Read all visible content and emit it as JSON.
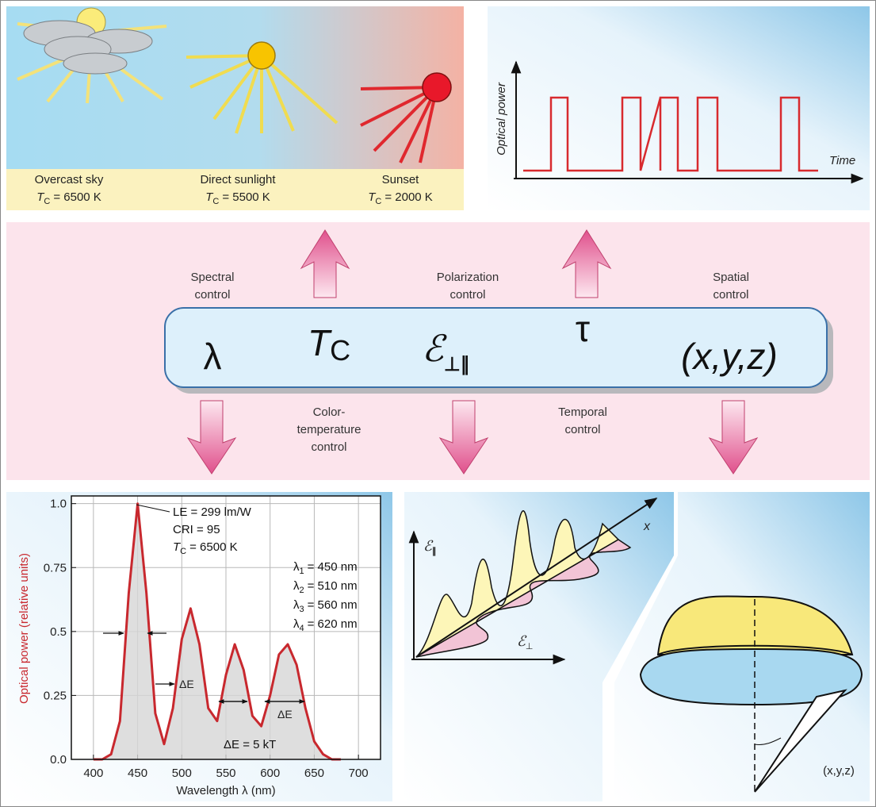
{
  "sky_panel": {
    "sources": [
      {
        "name": "Overcast sky",
        "symbol": "T",
        "subscript": "C",
        "value": "= 6500 K"
      },
      {
        "name": "Direct sunlight",
        "symbol": "T",
        "subscript": "C",
        "value": "= 5500 K"
      },
      {
        "name": "Sunset",
        "symbol": "T",
        "subscript": "C",
        "value": "= 2000 K"
      }
    ]
  },
  "pulse_panel": {
    "y_label": "Optical power",
    "x_label": "Time"
  },
  "controls": {
    "spectral": [
      "Spectral",
      "control"
    ],
    "polarization": [
      "Polarization",
      "control"
    ],
    "spatial": [
      "Spatial",
      "control"
    ],
    "color_temperature": [
      "Color-",
      "temperature",
      "control"
    ],
    "temporal": [
      "Temporal",
      "control"
    ]
  },
  "parameters": {
    "lambda": "λ",
    "tc_symbol": "T",
    "tc_subscript": "C",
    "field": "ℰ",
    "field_subscript": "⊥∥",
    "tau": "τ",
    "position": "(x,y,z)"
  },
  "spectrum": {
    "type": "line",
    "color": "#c8282e",
    "x": [
      400,
      410,
      420,
      430,
      440,
      450,
      460,
      470,
      480,
      490,
      500,
      510,
      520,
      530,
      540,
      550,
      560,
      570,
      580,
      590,
      600,
      610,
      620,
      630,
      640,
      650,
      660,
      670,
      680
    ],
    "values": [
      0,
      0,
      0.02,
      0.15,
      0.65,
      1.0,
      0.65,
      0.18,
      0.06,
      0.2,
      0.47,
      0.59,
      0.45,
      0.2,
      0.15,
      0.33,
      0.45,
      0.35,
      0.17,
      0.13,
      0.25,
      0.41,
      0.45,
      0.37,
      0.2,
      0.07,
      0.02,
      0,
      0
    ],
    "xlim": [
      375,
      725
    ],
    "ylim": [
      0,
      1.03
    ],
    "xticks": [
      400,
      450,
      500,
      550,
      600,
      650,
      700
    ],
    "yticks": [
      {
        "value": 0,
        "label": "0.0"
      },
      0.25,
      0.5,
      0.75,
      {
        "value": 1,
        "label": "1.0"
      }
    ],
    "grid": true,
    "x_label": "Wavelength  λ  (nm)",
    "y_label": "Optical power (relative units)",
    "annotations": {
      "le": "LE = 299 lm/W",
      "cri": "CRI = 95",
      "tc_symbol": "T",
      "tc_subscript": "C",
      "tc_value": "= 6500 K",
      "wavelengths": [
        {
          "symbol": "λ",
          "index": "1",
          "text": "= 450 nm"
        },
        {
          "symbol": "λ",
          "index": "2",
          "text": "= 510 nm"
        },
        {
          "symbol": "λ",
          "index": "3",
          "text": "= 560 nm"
        },
        {
          "symbol": "λ",
          "index": "4",
          "text": "= 620 nm"
        }
      ],
      "delta_e": "ΔE",
      "delta_e_2": "ΔE",
      "delta_e_eq": "ΔE = 5 kT"
    }
  },
  "polarization": {
    "y_axis": "ℰ",
    "y_sub": "∥",
    "x_axis": "ℰ",
    "x_sub": "⊥",
    "propagation": "x"
  },
  "spatial": {
    "position": "(x,y,z)"
  }
}
